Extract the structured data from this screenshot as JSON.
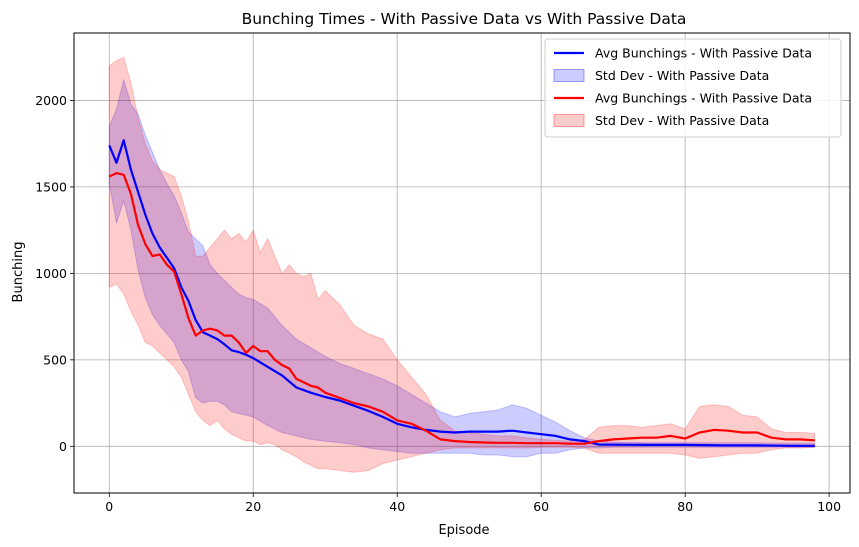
{
  "chart_data": {
    "type": "line",
    "title": "Bunching Times - With Passive Data vs With Passive Data",
    "xlabel": "Episode",
    "ylabel": "Bunching",
    "xlim": [
      -4.9,
      102.9
    ],
    "ylim": [
      -270,
      2390
    ],
    "xticks": [
      0,
      20,
      40,
      60,
      80,
      100
    ],
    "yticks": [
      0,
      500,
      1000,
      1500,
      2000
    ],
    "grid": true,
    "legend_position": "top-right",
    "series": [
      {
        "name": "Avg Bunchings - With Passive Data",
        "kind": "line",
        "color": "#0000ff",
        "x": [
          0,
          1,
          2,
          3,
          4,
          5,
          6,
          7,
          8,
          9,
          10,
          11,
          12,
          13,
          14,
          15,
          16,
          17,
          18,
          19,
          20,
          22,
          24,
          26,
          28,
          30,
          32,
          34,
          36,
          38,
          40,
          42,
          44,
          46,
          48,
          50,
          52,
          54,
          56,
          58,
          60,
          62,
          64,
          66,
          68,
          70,
          75,
          80,
          85,
          90,
          95,
          98
        ],
        "y": [
          1740,
          1640,
          1770,
          1600,
          1470,
          1340,
          1230,
          1150,
          1090,
          1030,
          920,
          840,
          730,
          660,
          640,
          620,
          590,
          555,
          545,
          530,
          510,
          460,
          410,
          340,
          310,
          285,
          265,
          235,
          205,
          170,
          130,
          110,
          95,
          85,
          80,
          85,
          85,
          85,
          90,
          80,
          70,
          60,
          40,
          30,
          10,
          10,
          8,
          8,
          5,
          5,
          3,
          3
        ]
      },
      {
        "name": "Std Dev - With Passive Data",
        "kind": "band",
        "color": "#0000ff",
        "opacity": 0.2,
        "x": [
          0,
          1,
          2,
          3,
          4,
          5,
          6,
          7,
          8,
          9,
          10,
          11,
          12,
          13,
          14,
          15,
          16,
          17,
          18,
          19,
          20,
          22,
          24,
          26,
          28,
          30,
          32,
          34,
          36,
          38,
          40,
          42,
          44,
          46,
          48,
          50,
          52,
          54,
          56,
          58,
          60,
          62,
          64,
          66,
          68,
          70,
          75,
          80,
          85,
          90,
          95,
          98
        ],
        "upper": [
          1850,
          1950,
          2120,
          1980,
          1920,
          1800,
          1700,
          1600,
          1520,
          1450,
          1350,
          1240,
          1200,
          1160,
          1050,
          1000,
          960,
          920,
          880,
          860,
          850,
          800,
          700,
          620,
          570,
          520,
          480,
          450,
          420,
          390,
          350,
          300,
          250,
          200,
          170,
          190,
          200,
          210,
          240,
          220,
          180,
          140,
          90,
          50,
          30,
          25,
          20,
          20,
          20,
          20,
          18,
          18
        ],
        "lower": [
          1520,
          1290,
          1420,
          1250,
          1020,
          860,
          760,
          700,
          650,
          600,
          500,
          430,
          280,
          250,
          260,
          260,
          240,
          200,
          190,
          180,
          170,
          120,
          80,
          60,
          40,
          30,
          20,
          10,
          -10,
          -20,
          -30,
          -40,
          -40,
          -40,
          -40,
          -40,
          -50,
          -50,
          -60,
          -60,
          -40,
          -40,
          -20,
          -10,
          -10,
          -5,
          -5,
          -5,
          -5,
          -5,
          -5,
          -5
        ]
      },
      {
        "name": "Avg Bunchings - With Passive Data",
        "kind": "line",
        "color": "#ff0000",
        "x": [
          0,
          1,
          2,
          3,
          4,
          5,
          6,
          7,
          8,
          9,
          10,
          11,
          12,
          13,
          14,
          15,
          16,
          17,
          18,
          19,
          20,
          21,
          22,
          23,
          24,
          25,
          26,
          27,
          28,
          29,
          30,
          32,
          34,
          36,
          38,
          40,
          42,
          44,
          46,
          48,
          50,
          52,
          54,
          56,
          58,
          60,
          62,
          64,
          66,
          68,
          70,
          72,
          74,
          76,
          78,
          80,
          82,
          84,
          86,
          88,
          90,
          92,
          94,
          96,
          98
        ],
        "y": [
          1560,
          1580,
          1570,
          1460,
          1280,
          1170,
          1100,
          1110,
          1050,
          1010,
          880,
          740,
          640,
          670,
          680,
          670,
          640,
          640,
          600,
          540,
          580,
          550,
          550,
          500,
          470,
          450,
          390,
          370,
          350,
          340,
          310,
          280,
          250,
          230,
          200,
          150,
          130,
          90,
          40,
          30,
          25,
          22,
          20,
          20,
          18,
          18,
          18,
          15,
          15,
          30,
          40,
          45,
          50,
          50,
          60,
          45,
          80,
          95,
          90,
          80,
          80,
          50,
          40,
          40,
          35
        ]
      },
      {
        "name": "Std Dev - With Passive Data",
        "kind": "band",
        "color": "#ff0000",
        "opacity": 0.2,
        "x": [
          0,
          1,
          2,
          3,
          4,
          5,
          6,
          7,
          8,
          9,
          10,
          11,
          12,
          13,
          14,
          15,
          16,
          17,
          18,
          19,
          20,
          21,
          22,
          23,
          24,
          25,
          26,
          27,
          28,
          29,
          30,
          32,
          34,
          36,
          38,
          40,
          42,
          44,
          46,
          48,
          50,
          52,
          54,
          56,
          58,
          60,
          62,
          64,
          66,
          68,
          70,
          72,
          74,
          76,
          78,
          80,
          82,
          84,
          86,
          88,
          90,
          92,
          94,
          96,
          98
        ],
        "upper": [
          2200,
          2230,
          2250,
          2100,
          1900,
          1750,
          1650,
          1600,
          1580,
          1560,
          1450,
          1300,
          1100,
          1100,
          1150,
          1200,
          1250,
          1200,
          1230,
          1180,
          1250,
          1120,
          1200,
          1100,
          1000,
          1050,
          1000,
          980,
          1000,
          850,
          900,
          820,
          700,
          650,
          620,
          500,
          400,
          300,
          150,
          90,
          80,
          70,
          60,
          60,
          50,
          40,
          35,
          30,
          40,
          110,
          120,
          120,
          110,
          120,
          130,
          100,
          230,
          240,
          230,
          180,
          170,
          100,
          80,
          80,
          75
        ],
        "lower": [
          920,
          940,
          880,
          780,
          700,
          600,
          580,
          540,
          500,
          460,
          400,
          300,
          200,
          150,
          120,
          150,
          100,
          70,
          50,
          30,
          30,
          10,
          20,
          10,
          -20,
          -40,
          -60,
          -90,
          -110,
          -130,
          -130,
          -140,
          -150,
          -140,
          -100,
          -80,
          -60,
          -40,
          -20,
          -10,
          -10,
          -10,
          -10,
          -10,
          -10,
          -5,
          -5,
          -5,
          -10,
          -40,
          -40,
          -40,
          -40,
          -40,
          -40,
          -50,
          -70,
          -60,
          -50,
          -40,
          -40,
          -20,
          -10,
          -10,
          -5
        ]
      }
    ]
  }
}
